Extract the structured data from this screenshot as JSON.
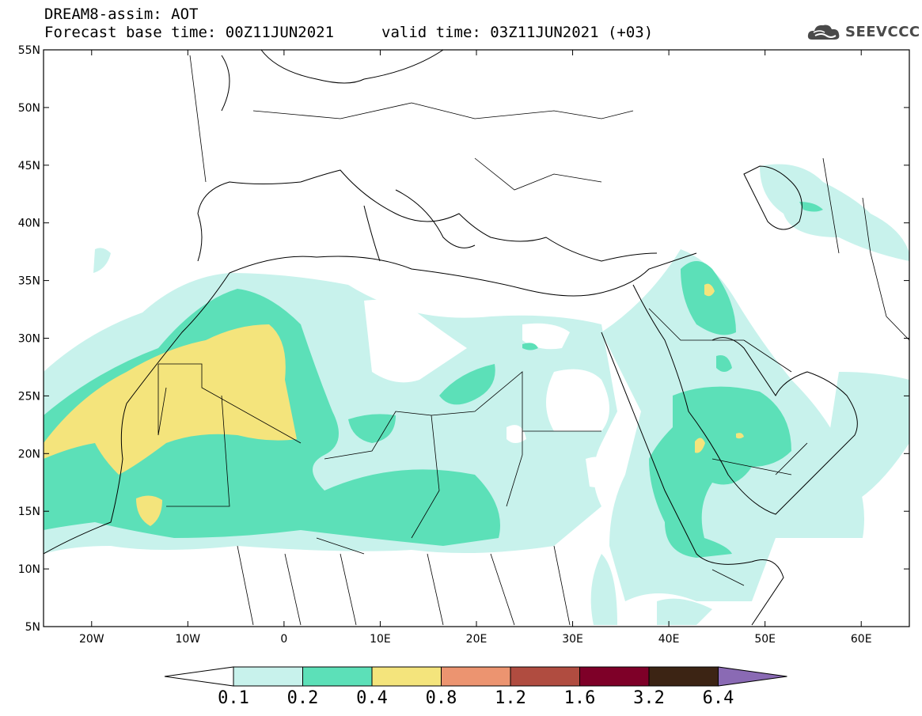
{
  "header": {
    "title": "DREAM8-assim: AOT",
    "forecast_base": "Forecast base time: 00Z11JUN2021",
    "valid_time": "valid time: 03Z11JUN2021 (+03)"
  },
  "logo": {
    "text": "SEEVCCC",
    "icon": "cloud-icon"
  },
  "map": {
    "lon_range": [
      -25,
      65
    ],
    "lat_range": [
      5,
      55
    ],
    "lat_ticks": [
      {
        "value": 55,
        "label": "55N"
      },
      {
        "value": 50,
        "label": "50N"
      },
      {
        "value": 45,
        "label": "45N"
      },
      {
        "value": 40,
        "label": "40N"
      },
      {
        "value": 35,
        "label": "35N"
      },
      {
        "value": 30,
        "label": "30N"
      },
      {
        "value": 25,
        "label": "25N"
      },
      {
        "value": 20,
        "label": "20N"
      },
      {
        "value": 15,
        "label": "15N"
      },
      {
        "value": 10,
        "label": "10N"
      },
      {
        "value": 5,
        "label": "5N"
      }
    ],
    "lon_ticks": [
      {
        "value": -20,
        "label": "20W"
      },
      {
        "value": -10,
        "label": "10W"
      },
      {
        "value": 0,
        "label": "0"
      },
      {
        "value": 10,
        "label": "10E"
      },
      {
        "value": 20,
        "label": "20E"
      },
      {
        "value": 30,
        "label": "30E"
      },
      {
        "value": 40,
        "label": "40E"
      },
      {
        "value": 50,
        "label": "50E"
      },
      {
        "value": 60,
        "label": "60E"
      }
    ]
  },
  "colorbar": {
    "levels": [
      "0.1",
      "0.2",
      "0.4",
      "0.8",
      "1.2",
      "1.6",
      "3.2",
      "6.4"
    ],
    "colors": [
      "#ffffff",
      "#c8f2ec",
      "#5ce0b8",
      "#f4e47c",
      "#ec9470",
      "#b04c40",
      "#7e0028",
      "#3c2414",
      "#8a6ab4"
    ]
  }
}
